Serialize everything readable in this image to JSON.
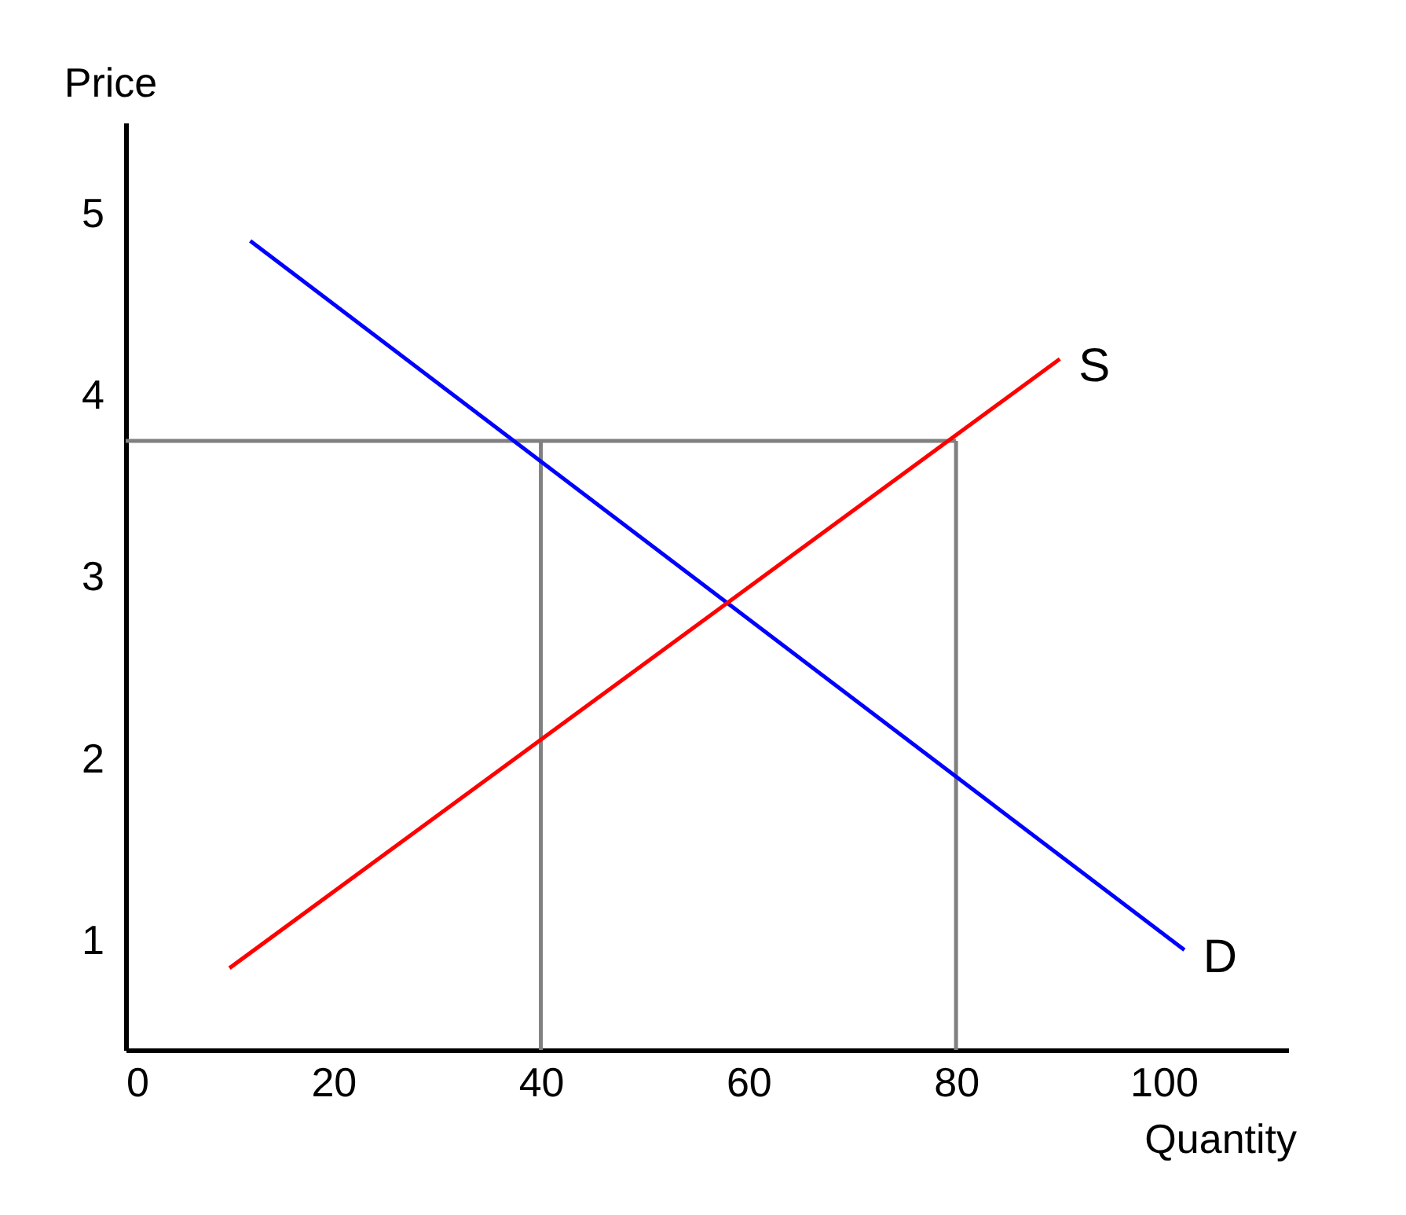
{
  "chart_data": {
    "type": "line",
    "xlabel": "Quantity",
    "ylabel": "Price",
    "xlim": [
      0,
      112
    ],
    "ylim": [
      0.4,
      5.5
    ],
    "xticks": [
      0,
      20,
      40,
      60,
      80,
      100
    ],
    "yticks": [
      1,
      2,
      3,
      4,
      5
    ],
    "grid": false,
    "marker": "none",
    "line_style": "solid",
    "series": [
      {
        "color": "#808080",
        "x": [
          0,
          80
        ],
        "values": [
          3.75,
          3.75
        ]
      },
      {
        "color": "#808080",
        "x": [
          40,
          40
        ],
        "values": [
          0.4,
          3.75
        ]
      },
      {
        "color": "#808080",
        "x": [
          80,
          80
        ],
        "values": [
          0.4,
          3.75
        ]
      },
      {
        "name": "D",
        "color": "#0000ff",
        "x": [
          12,
          102
        ],
        "values": [
          4.85,
          0.95
        ]
      },
      {
        "name": "S",
        "color": "#ff0000",
        "x": [
          10,
          90
        ],
        "values": [
          0.85,
          4.2
        ]
      }
    ]
  }
}
